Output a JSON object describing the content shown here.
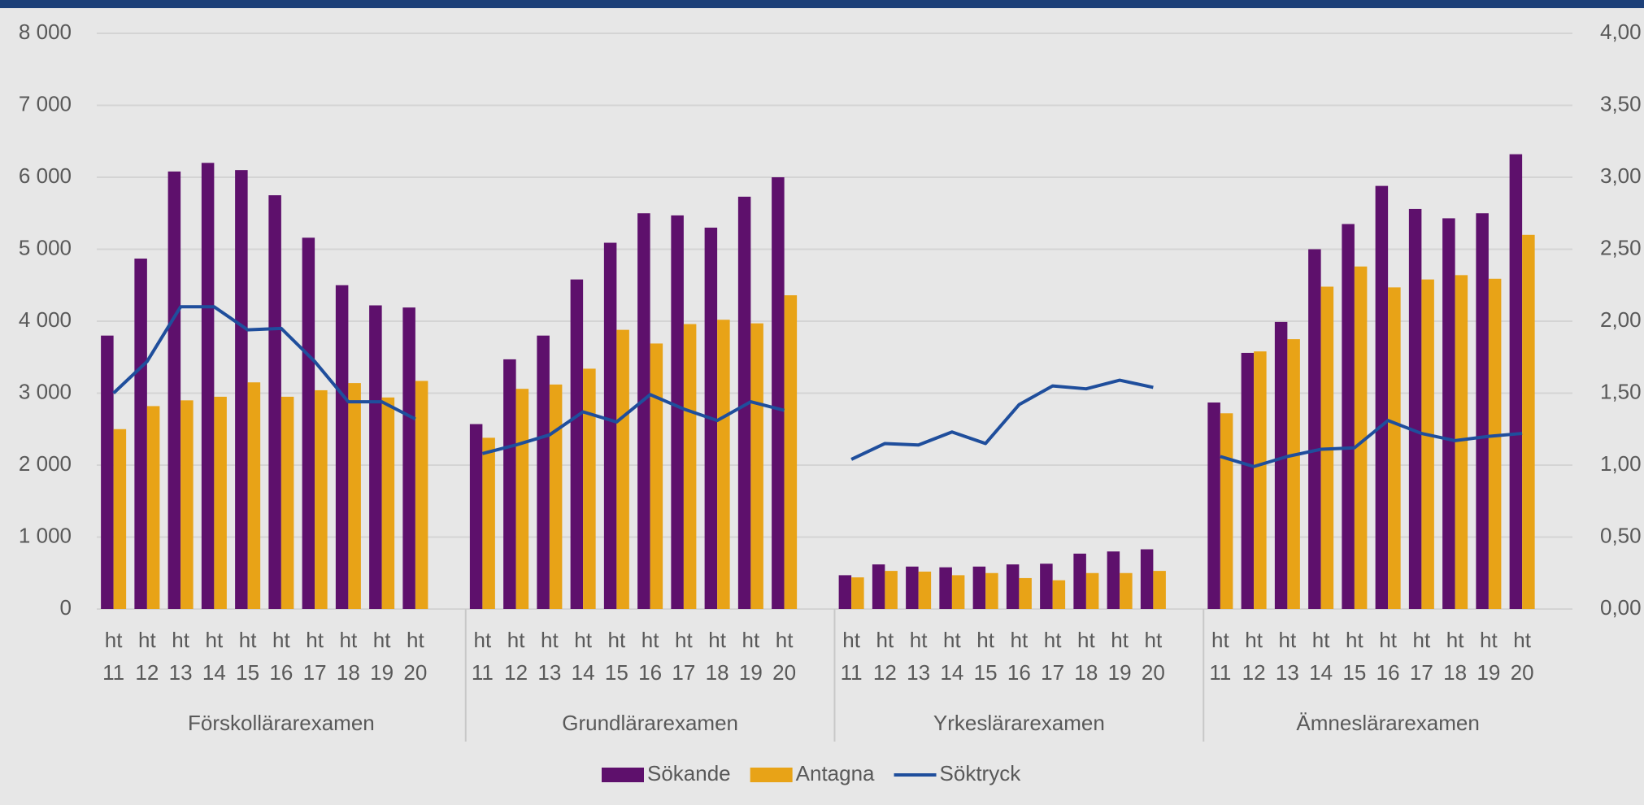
{
  "chart_data": {
    "type": "bar-line",
    "groups": [
      {
        "name": "Förskollärarexamen",
        "categories": [
          "ht 11",
          "ht 12",
          "ht 13",
          "ht 14",
          "ht 15",
          "ht 16",
          "ht 17",
          "ht 18",
          "ht 19",
          "ht 20"
        ]
      },
      {
        "name": "Grundlärarexamen",
        "categories": [
          "ht 11",
          "ht 12",
          "ht 13",
          "ht 14",
          "ht 15",
          "ht 16",
          "ht 17",
          "ht 18",
          "ht 19",
          "ht 20"
        ]
      },
      {
        "name": "Yrkeslärarexamen",
        "categories": [
          "ht 11",
          "ht 12",
          "ht 13",
          "ht 14",
          "ht 15",
          "ht 16",
          "ht 17",
          "ht 18",
          "ht 19",
          "ht 20"
        ]
      },
      {
        "name": "Ämneslärarexamen",
        "categories": [
          "ht 11",
          "ht 12",
          "ht 13",
          "ht 14",
          "ht 15",
          "ht 16",
          "ht 17",
          "ht 18",
          "ht 19",
          "ht 20"
        ]
      }
    ],
    "series": [
      {
        "name": "Sökande",
        "type": "bar",
        "color": "#5e106c",
        "values": [
          3800,
          4870,
          6080,
          6200,
          6100,
          5750,
          5160,
          4500,
          4220,
          4190,
          2570,
          3470,
          3800,
          4580,
          5090,
          5500,
          5470,
          5300,
          5730,
          6000,
          470,
          620,
          590,
          580,
          590,
          620,
          630,
          770,
          800,
          830,
          2870,
          3560,
          3990,
          5000,
          5350,
          5880,
          5560,
          5430,
          5500,
          6320
        ]
      },
      {
        "name": "Antagna",
        "type": "bar",
        "color": "#e8a317",
        "values": [
          2500,
          2820,
          2900,
          2950,
          3150,
          2950,
          3040,
          3140,
          2940,
          3170,
          2380,
          3060,
          3120,
          3340,
          3880,
          3690,
          3960,
          4020,
          3970,
          4360,
          440,
          530,
          520,
          470,
          500,
          430,
          400,
          500,
          500,
          530,
          2720,
          3580,
          3750,
          4480,
          4760,
          4470,
          4580,
          4640,
          4590,
          5200
        ]
      },
      {
        "name": "Söktryck",
        "type": "line",
        "axis": "y2",
        "color": "#1f4e9c",
        "values": [
          1.5,
          1.72,
          2.1,
          2.1,
          1.94,
          1.95,
          1.72,
          1.44,
          1.44,
          1.32,
          1.08,
          1.14,
          1.21,
          1.37,
          1.3,
          1.49,
          1.39,
          1.31,
          1.44,
          1.38,
          1.04,
          1.15,
          1.14,
          1.23,
          1.15,
          1.42,
          1.55,
          1.53,
          1.59,
          1.54,
          1.06,
          0.99,
          1.06,
          1.11,
          1.12,
          1.31,
          1.22,
          1.17,
          1.2,
          1.22
        ]
      }
    ],
    "ylim": [
      0,
      8000
    ],
    "yticks": [
      0,
      {
        "value": 1000,
        "label": "1 000"
      },
      {
        "value": 2000,
        "label": "2 000"
      },
      {
        "value": 3000,
        "label": "3 000"
      },
      {
        "value": 4000,
        "label": "4 000"
      },
      {
        "value": 5000,
        "label": "5 000"
      },
      {
        "value": 6000,
        "label": "6 000"
      },
      {
        "value": 7000,
        "label": "7 000"
      },
      {
        "value": 8000,
        "label": "8 000"
      }
    ],
    "y2lim": [
      0,
      4
    ],
    "y2ticks": [
      {
        "value": 0,
        "label": "0,00"
      },
      {
        "value": 0.5,
        "label": "0,50"
      },
      {
        "value": 1,
        "label": "1,00"
      },
      {
        "value": 1.5,
        "label": "1,50"
      },
      {
        "value": 2,
        "label": "2,00"
      },
      {
        "value": 2.5,
        "label": "2,50"
      },
      {
        "value": 3,
        "label": "3,00"
      },
      {
        "value": 3.5,
        "label": "3,50"
      },
      {
        "value": 4,
        "label": "4,00"
      }
    ],
    "grid": true,
    "legend": "bottom"
  }
}
